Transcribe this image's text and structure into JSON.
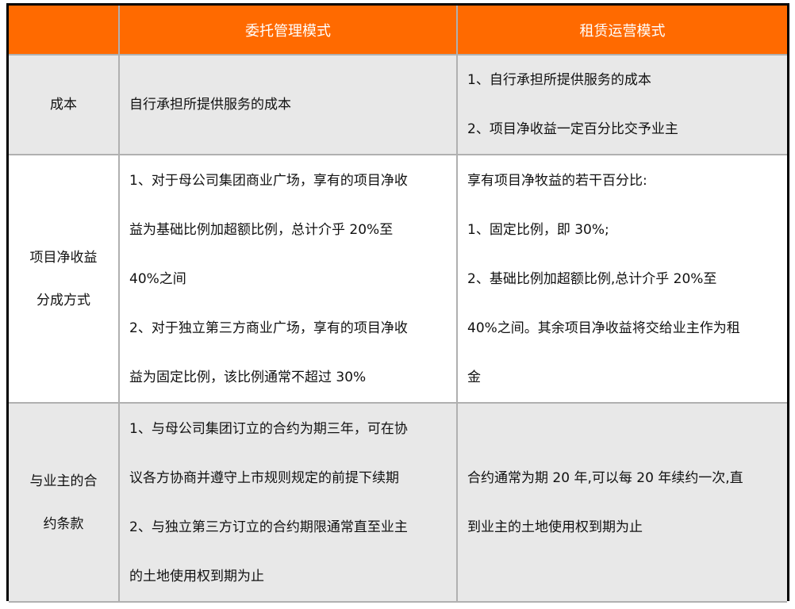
{
  "header": {
    "col0": "",
    "col1": "委托管理模式",
    "col2": "租赁运营模式"
  },
  "colors": {
    "header_bg": "#ff6a00",
    "row_gray": "#e8e8e8"
  },
  "rows": [
    {
      "label": [
        "成本"
      ],
      "entrusted": [
        "自行承担所提供服务的成本"
      ],
      "leasing": [
        "1、自行承担所提供服务的成本",
        "2、项目净收益一定百分比交予业主"
      ]
    },
    {
      "label": [
        "项目净收益",
        "分成方式"
      ],
      "entrusted": [
        "1、对于母公司集团商业广场，享有的项目净收",
        "益为基础比例加超额比例，总计介乎 20%至",
        "40%之间",
        "2、对于独立第三方商业广场，享有的项目净收",
        "益为固定比例，该比例通常不超过 30%"
      ],
      "leasing": [
        "享有项目净牧益的若干百分比:",
        "1、固定比例，即 30%;",
        "2、基础比例加超额比例,总计介乎 20%至",
        "40%之间。其余项目净收益将交给业主作为租",
        "金"
      ]
    },
    {
      "label": [
        "与业主的合",
        "约条款"
      ],
      "entrusted": [
        "1、与母公司集团订立的合约为期三年，可在协",
        "议各方协商并遵守上市规则规定的前提下续期",
        "2、与独立第三方订立的合约期限通常直至业主",
        "的土地使用权到期为止"
      ],
      "leasing": [
        "合约通常为期 20 年,可以每 20 年续约一次,直",
        "到业主的土地使用权到期为止"
      ]
    }
  ]
}
